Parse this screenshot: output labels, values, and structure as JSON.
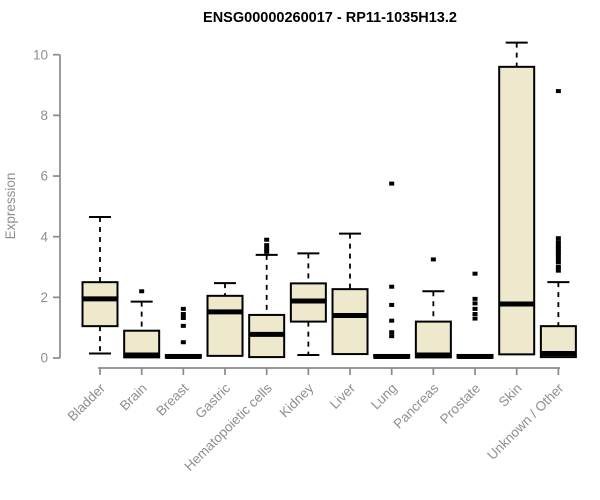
{
  "title": "ENSG00000260017 - RP11-1035H13.2",
  "chart_data": {
    "type": "box",
    "title": "ENSG00000260017 - RP11-1035H13.2",
    "xlabel": "",
    "ylabel": "Expression",
    "ylim": [
      0,
      10
    ],
    "yticks": [
      0,
      2,
      4,
      6,
      8,
      10
    ],
    "grid": false,
    "legend": false,
    "categories": [
      "Bladder",
      "Brain",
      "Breast",
      "Gastric",
      "Hematopoietic cells",
      "Kidney",
      "Liver",
      "Lung",
      "Pancreas",
      "Prostate",
      "Skin",
      "Unknown / Other"
    ],
    "series": [
      {
        "category": "Bladder",
        "low": 0.15,
        "q1": 1.05,
        "median": 1.95,
        "q3": 2.5,
        "high": 4.65,
        "outliers": []
      },
      {
        "category": "Brain",
        "low": 0.0,
        "q1": 0.02,
        "median": 0.1,
        "q3": 0.9,
        "high": 1.86,
        "outliers": [
          2.2
        ]
      },
      {
        "category": "Breast",
        "low": 0.0,
        "q1": 0.01,
        "median": 0.05,
        "q3": 0.1,
        "high": 0.13,
        "outliers": [
          1.62,
          1.45,
          1.32,
          1.06,
          0.52
        ]
      },
      {
        "category": "Gastric",
        "low": 0.05,
        "q1": 0.07,
        "median": 1.52,
        "q3": 2.05,
        "high": 2.47,
        "outliers": []
      },
      {
        "category": "Hematopoietic cells",
        "low": 0.0,
        "q1": 0.03,
        "median": 0.78,
        "q3": 1.42,
        "high": 3.4,
        "outliers": [
          3.9,
          3.72,
          3.6,
          3.5
        ]
      },
      {
        "category": "Kidney",
        "low": 0.1,
        "q1": 1.2,
        "median": 1.88,
        "q3": 2.46,
        "high": 3.45,
        "outliers": []
      },
      {
        "category": "Liver",
        "low": 0.1,
        "q1": 0.13,
        "median": 1.4,
        "q3": 2.27,
        "high": 4.1,
        "outliers": []
      },
      {
        "category": "Lung",
        "low": 0.0,
        "q1": 0.01,
        "median": 0.05,
        "q3": 0.1,
        "high": 0.13,
        "outliers": [
          5.75,
          2.35,
          1.75,
          1.23,
          0.85,
          0.72
        ]
      },
      {
        "category": "Pancreas",
        "low": 0.0,
        "q1": 0.02,
        "median": 0.1,
        "q3": 1.2,
        "high": 2.2,
        "outliers": [
          3.25
        ]
      },
      {
        "category": "Prostate",
        "low": 0.0,
        "q1": 0.01,
        "median": 0.05,
        "q3": 0.1,
        "high": 0.13,
        "outliers": [
          2.78,
          1.95,
          1.8,
          1.62,
          1.45,
          1.3
        ]
      },
      {
        "category": "Skin",
        "low": 0.08,
        "q1": 0.12,
        "median": 1.78,
        "q3": 9.6,
        "high": 10.4,
        "outliers": []
      },
      {
        "category": "Unknown / Other",
        "low": 0.0,
        "q1": 0.03,
        "median": 0.15,
        "q3": 1.05,
        "high": 2.5,
        "outliers": [
          8.8,
          3.95,
          3.82,
          3.7,
          3.6,
          3.5,
          3.4,
          3.28,
          3.15,
          3.0,
          2.88
        ]
      }
    ],
    "colors": {
      "box_fill": "#EEE8CD",
      "box_stroke": "#000000",
      "median": "#000000",
      "whisker": "#000000",
      "outlier": "#000000",
      "axis": "#8a8a8a",
      "tick_label": "#8f8f8f",
      "title": "#000000",
      "background": "#ffffff"
    }
  }
}
